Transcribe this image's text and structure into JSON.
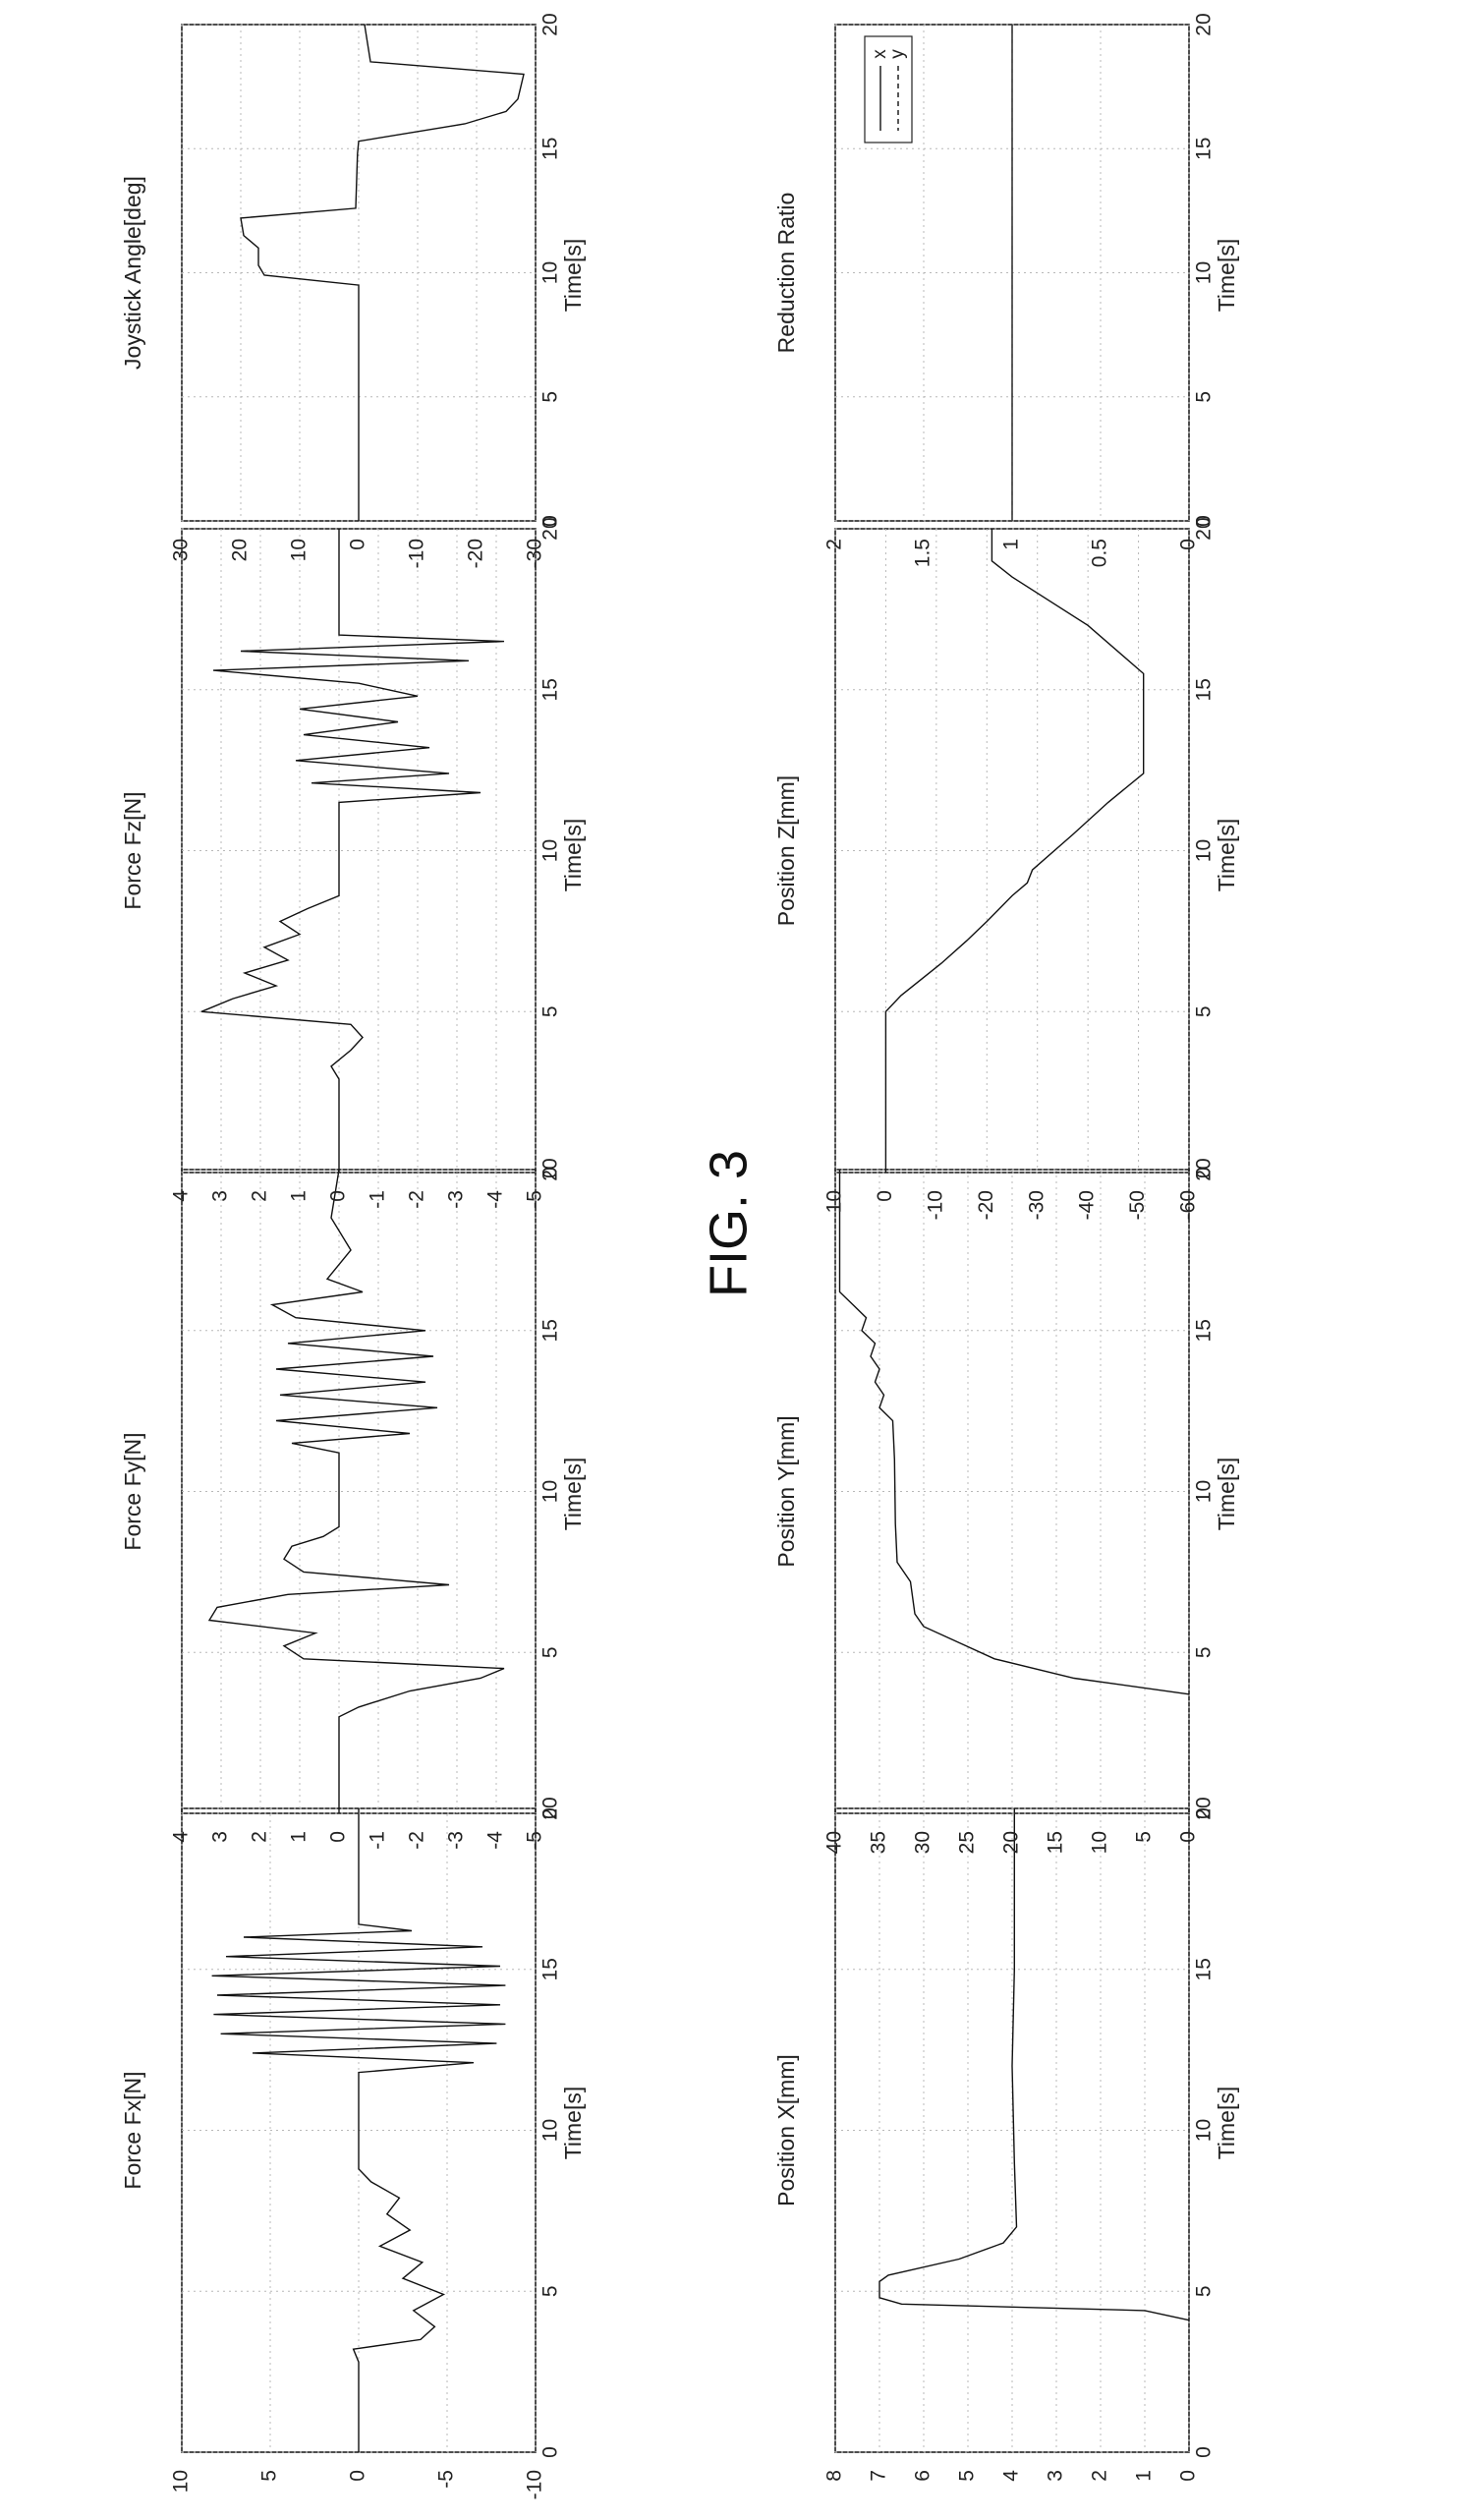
{
  "figure_title": "FIG. 3",
  "xlabel": "Time[s]",
  "chart_data": [
    {
      "id": "fx",
      "type": "line",
      "title": "",
      "xlabel": "Time[s]",
      "ylabel": "Force Fx[N]",
      "xlim": [
        0,
        20
      ],
      "ylim": [
        -10,
        10
      ],
      "xticks": [
        0,
        5,
        10,
        15,
        20
      ],
      "yticks": [
        -10,
        -5,
        0,
        5,
        10
      ],
      "grid": true,
      "series": [
        {
          "values": [
            [
              0,
              0
            ],
            [
              2.8,
              0
            ],
            [
              3.2,
              0.3
            ],
            [
              3.5,
              -3.5
            ],
            [
              3.9,
              -4.3
            ],
            [
              4.4,
              -3.1
            ],
            [
              4.9,
              -4.8
            ],
            [
              5.4,
              -2.5
            ],
            [
              5.9,
              -3.6
            ],
            [
              6.4,
              -1.2
            ],
            [
              6.9,
              -2.9
            ],
            [
              7.4,
              -1.6
            ],
            [
              7.9,
              -2.3
            ],
            [
              8.4,
              -0.7
            ],
            [
              8.8,
              0
            ],
            [
              11.8,
              0
            ],
            [
              12.1,
              -6.5
            ],
            [
              12.4,
              6
            ],
            [
              12.7,
              -7.8
            ],
            [
              13.0,
              7.8
            ],
            [
              13.3,
              -8.3
            ],
            [
              13.6,
              8.2
            ],
            [
              13.9,
              -8
            ],
            [
              14.2,
              8
            ],
            [
              14.5,
              -8.3
            ],
            [
              14.8,
              8.3
            ],
            [
              15.1,
              -8
            ],
            [
              15.4,
              7.5
            ],
            [
              15.7,
              -7
            ],
            [
              16.0,
              6.5
            ],
            [
              16.2,
              -3
            ],
            [
              16.4,
              0
            ],
            [
              20,
              0
            ]
          ]
        }
      ]
    },
    {
      "id": "fy",
      "type": "line",
      "title": "",
      "xlabel": "Time[s]",
      "ylabel": "Force Fy[N]",
      "xlim": [
        0,
        20
      ],
      "ylim": [
        -5,
        4
      ],
      "xticks": [
        0,
        5,
        10,
        15,
        20
      ],
      "yticks": [
        -5,
        -4,
        -3,
        -2,
        -1,
        0,
        1,
        2,
        3,
        4
      ],
      "grid": true,
      "series": [
        {
          "values": [
            [
              0,
              0
            ],
            [
              3.0,
              0
            ],
            [
              3.3,
              -0.5
            ],
            [
              3.8,
              -1.8
            ],
            [
              4.2,
              -3.6
            ],
            [
              4.5,
              -4.2
            ],
            [
              4.8,
              0.9
            ],
            [
              5.2,
              1.4
            ],
            [
              5.6,
              0.6
            ],
            [
              6.0,
              3.3
            ],
            [
              6.4,
              3.1
            ],
            [
              6.8,
              1.3
            ],
            [
              7.1,
              -2.8
            ],
            [
              7.5,
              0.9
            ],
            [
              7.9,
              1.4
            ],
            [
              8.3,
              1.2
            ],
            [
              8.6,
              0.4
            ],
            [
              8.9,
              0
            ],
            [
              11.2,
              0
            ],
            [
              11.5,
              1.2
            ],
            [
              11.8,
              -1.8
            ],
            [
              12.2,
              1.6
            ],
            [
              12.6,
              -2.5
            ],
            [
              13.0,
              1.5
            ],
            [
              13.4,
              -2.2
            ],
            [
              13.8,
              1.6
            ],
            [
              14.2,
              -2.4
            ],
            [
              14.6,
              1.3
            ],
            [
              15.0,
              -2.2
            ],
            [
              15.4,
              1.1
            ],
            [
              15.8,
              1.7
            ],
            [
              16.2,
              -0.6
            ],
            [
              16.6,
              0.3
            ],
            [
              17.5,
              -0.3
            ],
            [
              18.5,
              0.2
            ],
            [
              20,
              0
            ]
          ]
        }
      ]
    },
    {
      "id": "fz",
      "type": "line",
      "title": "",
      "xlabel": "Time[s]",
      "ylabel": "Force Fz[N]",
      "xlim": [
        0,
        20
      ],
      "ylim": [
        -5,
        4
      ],
      "xticks": [
        0,
        5,
        10,
        15,
        20
      ],
      "yticks": [
        -5,
        -4,
        -3,
        -2,
        -1,
        0,
        1,
        2,
        3,
        4
      ],
      "grid": true,
      "series": [
        {
          "values": [
            [
              0,
              0
            ],
            [
              2.9,
              0
            ],
            [
              3.3,
              0.2
            ],
            [
              3.8,
              -0.3
            ],
            [
              4.2,
              -0.6
            ],
            [
              4.6,
              -0.3
            ],
            [
              5.0,
              3.5
            ],
            [
              5.4,
              2.7
            ],
            [
              5.8,
              1.6
            ],
            [
              6.2,
              2.4
            ],
            [
              6.6,
              1.3
            ],
            [
              7.0,
              1.9
            ],
            [
              7.4,
              1.0
            ],
            [
              7.8,
              1.5
            ],
            [
              8.2,
              0.8
            ],
            [
              8.6,
              0
            ],
            [
              11.5,
              0
            ],
            [
              11.8,
              -3.6
            ],
            [
              12.1,
              0.7
            ],
            [
              12.4,
              -2.8
            ],
            [
              12.8,
              1.1
            ],
            [
              13.2,
              -2.3
            ],
            [
              13.6,
              0.9
            ],
            [
              14.0,
              -1.5
            ],
            [
              14.4,
              1.0
            ],
            [
              14.8,
              -2.0
            ],
            [
              15.2,
              -0.5
            ],
            [
              15.6,
              3.2
            ],
            [
              15.9,
              -3.3
            ],
            [
              16.2,
              2.5
            ],
            [
              16.5,
              -4.2
            ],
            [
              16.7,
              0
            ],
            [
              20,
              0
            ]
          ]
        }
      ]
    },
    {
      "id": "joy",
      "type": "line",
      "title": "",
      "xlabel": "Time[s]",
      "ylabel": "Joystick Angle[deg]",
      "xlim": [
        0,
        20
      ],
      "ylim": [
        -30,
        30
      ],
      "xticks": [
        0,
        5,
        10,
        15,
        20
      ],
      "yticks": [
        -30,
        -20,
        -10,
        0,
        10,
        20,
        30
      ],
      "grid": true,
      "series": [
        {
          "values": [
            [
              0,
              0
            ],
            [
              9.5,
              0
            ],
            [
              9.9,
              16
            ],
            [
              10.3,
              17
            ],
            [
              11.0,
              17
            ],
            [
              11.5,
              19.5
            ],
            [
              12.2,
              20
            ],
            [
              12.6,
              0.5
            ],
            [
              14.8,
              0.2
            ],
            [
              15.3,
              0
            ],
            [
              16.0,
              -18
            ],
            [
              16.5,
              -25
            ],
            [
              17.0,
              -27
            ],
            [
              18.0,
              -28
            ],
            [
              18.5,
              -2
            ],
            [
              20,
              -1
            ]
          ]
        }
      ]
    },
    {
      "id": "px",
      "type": "line",
      "title": "",
      "xlabel": "Time[s]",
      "ylabel": "Position X[mm]",
      "xlim": [
        0,
        20
      ],
      "ylim": [
        0,
        8
      ],
      "xticks": [
        0,
        5,
        10,
        15,
        20
      ],
      "yticks": [
        0,
        1,
        2,
        3,
        4,
        5,
        6,
        7,
        8
      ],
      "grid": true,
      "series": [
        {
          "values": [
            [
              4.1,
              0
            ],
            [
              4.4,
              1
            ],
            [
              4.6,
              6.5
            ],
            [
              4.8,
              7
            ],
            [
              5.3,
              7
            ],
            [
              5.5,
              6.8
            ],
            [
              6.0,
              5.2
            ],
            [
              6.5,
              4.2
            ],
            [
              7.0,
              3.9
            ],
            [
              9.0,
              3.95
            ],
            [
              12.0,
              4.0
            ],
            [
              15.0,
              3.95
            ],
            [
              20,
              3.95
            ]
          ]
        }
      ]
    },
    {
      "id": "py",
      "type": "line",
      "title": "",
      "xlabel": "Time[s]",
      "ylabel": "Position Y[mm]",
      "xlim": [
        0,
        20
      ],
      "ylim": [
        0,
        40
      ],
      "xticks": [
        0,
        5,
        10,
        15,
        20
      ],
      "yticks": [
        0,
        5,
        10,
        15,
        20,
        25,
        30,
        35,
        40
      ],
      "grid": true,
      "series": [
        {
          "values": [
            [
              3.7,
              0
            ],
            [
              4.2,
              13
            ],
            [
              4.8,
              22
            ],
            [
              5.3,
              26
            ],
            [
              5.8,
              30
            ],
            [
              6.2,
              31
            ],
            [
              7.2,
              31.5
            ],
            [
              7.8,
              33
            ],
            [
              9.0,
              33.2
            ],
            [
              11.0,
              33.3
            ],
            [
              12.2,
              33.5
            ],
            [
              12.6,
              35
            ],
            [
              13.0,
              34.5
            ],
            [
              13.4,
              35.5
            ],
            [
              13.8,
              35
            ],
            [
              14.2,
              36
            ],
            [
              14.6,
              35.5
            ],
            [
              15.0,
              37
            ],
            [
              15.4,
              36.5
            ],
            [
              15.8,
              38
            ],
            [
              16.2,
              39.5
            ],
            [
              20,
              39.5
            ]
          ]
        }
      ]
    },
    {
      "id": "pz",
      "type": "line",
      "title": "",
      "xlabel": "Time[s]",
      "ylabel": "Position Z[mm]",
      "xlim": [
        0,
        20
      ],
      "ylim": [
        -60,
        10
      ],
      "xticks": [
        0,
        5,
        10,
        15,
        20
      ],
      "yticks": [
        -60,
        -50,
        -40,
        -30,
        -20,
        -10,
        0,
        10
      ],
      "grid": true,
      "series": [
        {
          "values": [
            [
              0,
              0
            ],
            [
              5.0,
              0
            ],
            [
              5.5,
              -3
            ],
            [
              6.5,
              -11
            ],
            [
              7.2,
              -16
            ],
            [
              7.8,
              -20
            ],
            [
              8.6,
              -25
            ],
            [
              9.0,
              -28
            ],
            [
              9.4,
              -29
            ],
            [
              10.5,
              -37
            ],
            [
              11.5,
              -44
            ],
            [
              12.4,
              -51
            ],
            [
              15.5,
              -51
            ],
            [
              17.0,
              -40
            ],
            [
              18.5,
              -25
            ],
            [
              19.0,
              -21
            ],
            [
              20,
              -21
            ]
          ]
        }
      ]
    },
    {
      "id": "ratio",
      "type": "line",
      "title": "",
      "xlabel": "Time[s]",
      "ylabel": "Reduction Ratio",
      "xlim": [
        0,
        20
      ],
      "ylim": [
        0,
        2
      ],
      "xticks": [
        0,
        5,
        10,
        15,
        20
      ],
      "yticks": [
        0,
        0.5,
        1,
        1.5,
        2
      ],
      "grid": true,
      "legend": {
        "position": "top-right"
      },
      "series": [
        {
          "name": "x",
          "style": "solid",
          "values": [
            [
              0,
              1
            ],
            [
              20,
              1
            ]
          ]
        },
        {
          "name": "y",
          "style": "dashed",
          "values": [
            [
              0,
              1
            ],
            [
              20,
              1
            ]
          ]
        }
      ]
    }
  ]
}
